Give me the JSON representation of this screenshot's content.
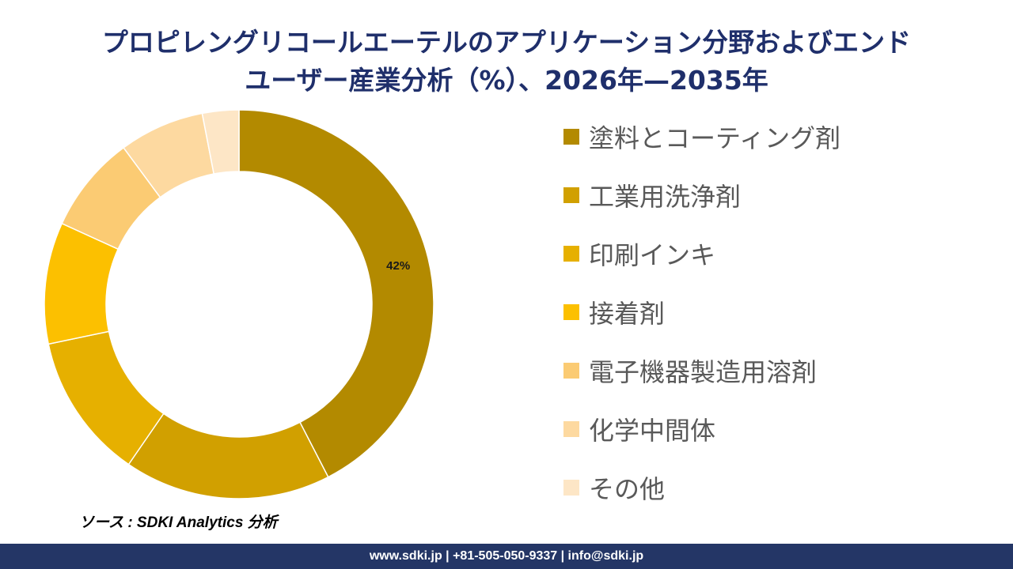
{
  "title": {
    "line1": "プロピレングリコールエーテルのアプリケーション分野およびエンド",
    "line2": "ユーザー産業分析（%）、2026年—2035年"
  },
  "chart_data": {
    "type": "pie",
    "donut": true,
    "legend_position": "right",
    "categories": [
      "塗料とコーティング剤",
      "工業用洗浄剤",
      "印刷インキ",
      "接着剤",
      "電子機器製造用溶剤",
      "化学中間体",
      "その他"
    ],
    "values": [
      42,
      17,
      12,
      10,
      8,
      7,
      3
    ],
    "data_labels": [
      "42%",
      "",
      "",
      "",
      "",
      "",
      ""
    ],
    "colors": [
      "#b38a00",
      "#d1a000",
      "#e6b000",
      "#fcc000",
      "#fbcb73",
      "#fdd9a0",
      "#fde6c6"
    ]
  },
  "source": "ソース : SDKI Analytics 分析",
  "footer": "www.sdki.jp | +81-505-050-9337 | info@sdki.jp"
}
